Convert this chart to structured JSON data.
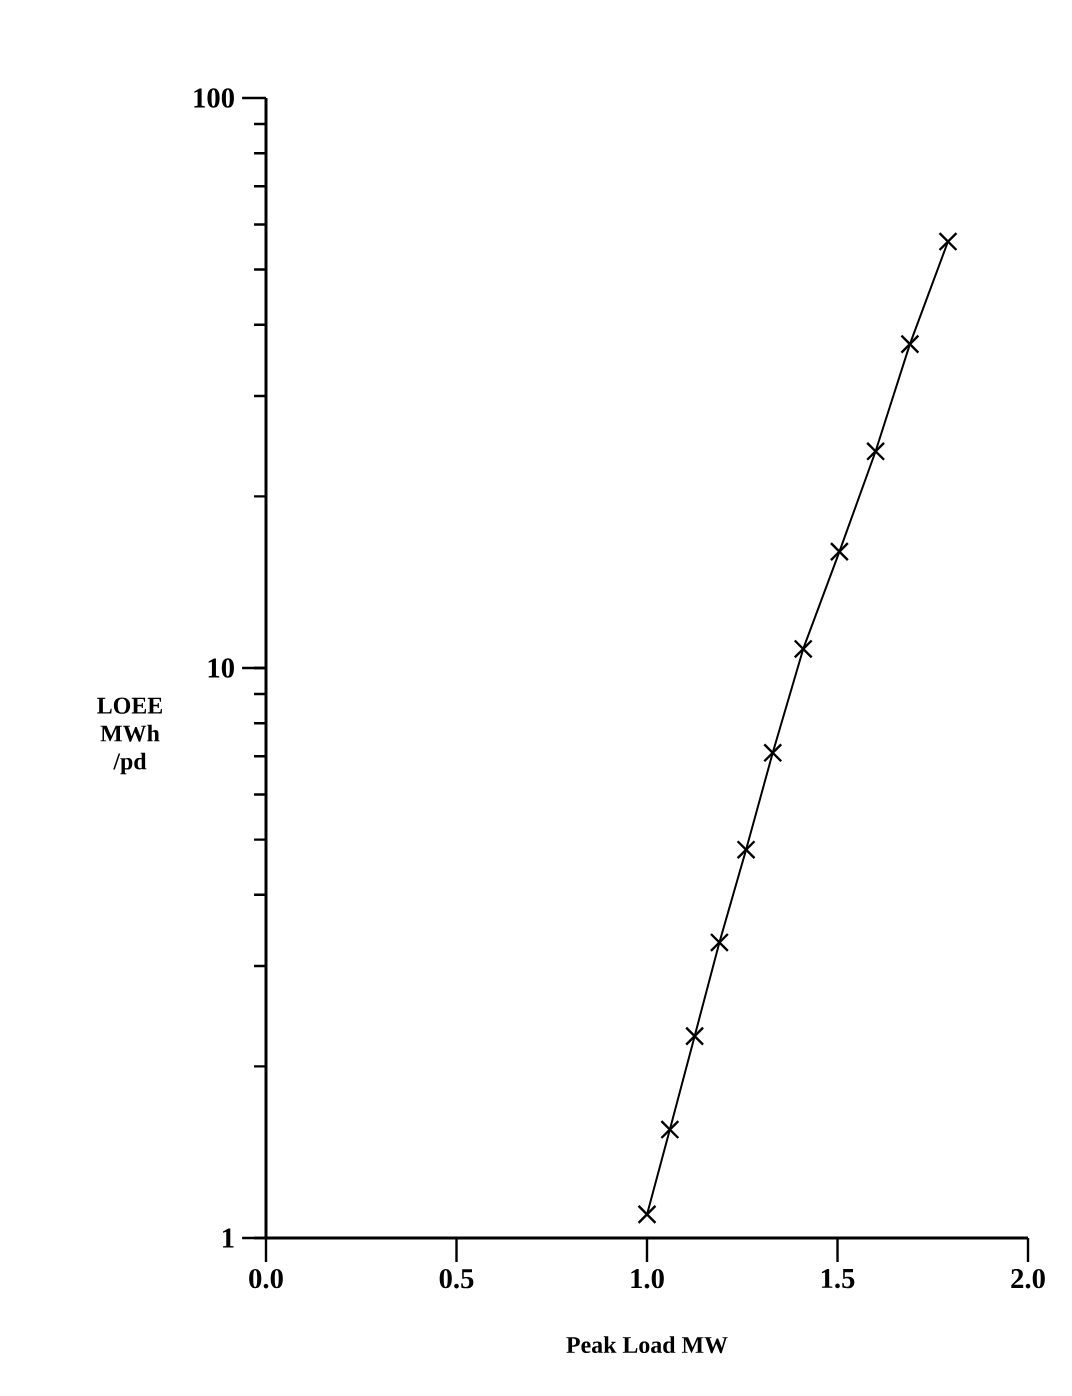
{
  "chart_data": {
    "type": "line",
    "xlabel": "Peak Load MW",
    "ylabel": "LOEE\nMWh\n/pd",
    "x": [
      1.0,
      1.06,
      1.125,
      1.19,
      1.26,
      1.33,
      1.41,
      1.505,
      1.6,
      1.69,
      1.79
    ],
    "series": [
      {
        "color": "#000000",
        "values": [
          1.1,
          1.55,
          2.26,
          3.3,
          4.8,
          7.1,
          10.8,
          16,
          24,
          37,
          56
        ]
      }
    ],
    "log": "y",
    "xlim": [
      0,
      2
    ],
    "ylim": [
      1,
      100
    ],
    "xticks": [
      {
        "value": 0,
        "label": "0.0"
      },
      {
        "value": 0.5,
        "label": "0.5"
      },
      {
        "value": 1,
        "label": "1.0"
      },
      {
        "value": 1.5,
        "label": "1.5"
      },
      {
        "value": 2,
        "label": "2.0"
      }
    ],
    "yticks": [
      1,
      10,
      100
    ],
    "marker": "cross",
    "line_style": "solid"
  }
}
